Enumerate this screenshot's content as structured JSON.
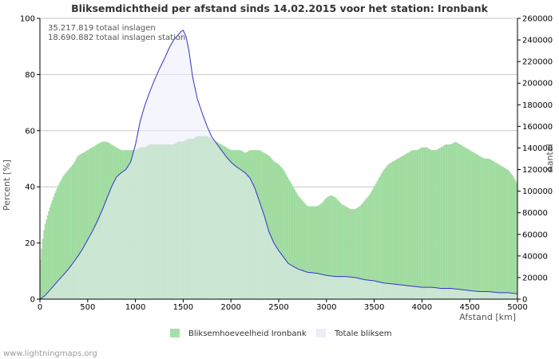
{
  "chart_data": {
    "type": "bar",
    "title": "Bliksemdichtheid per afstand sinds 14.02.2015 voor het station: Ironbank",
    "info_lines": [
      "35.217.819 totaal inslagen",
      "18.690.882 totaal inslagen station"
    ],
    "xlabel": "Afstand   [km]",
    "ylabel_left": "Percent   [%]",
    "ylabel_right": "Aantal",
    "xlim": [
      0,
      5000
    ],
    "ylim_left": [
      0,
      100
    ],
    "ylim_right": [
      0,
      260000
    ],
    "x_ticks": [
      0,
      500,
      1000,
      1500,
      2000,
      2500,
      3000,
      3500,
      4000,
      4500,
      5000
    ],
    "y_ticks_left": [
      0,
      20,
      40,
      60,
      80,
      100
    ],
    "y_ticks_right": [
      "0",
      "20000",
      "40000",
      "60000",
      "80000",
      "100000",
      "120000",
      "140000",
      "160000",
      "180000",
      "200000",
      "220000",
      "240000",
      "260000"
    ],
    "legend": [
      "Bliksemhoeveelheid Ironbank",
      "Totale bliksem"
    ],
    "colors": {
      "station": "#a7dfa7",
      "station_edge": "#8fd48f",
      "total_fill": "#ececfb",
      "total_line": "#3333cc",
      "grid": "#c8c8c8"
    },
    "series": [
      {
        "name": "Bliksemhoeveelheid Ironbank",
        "axis": "left",
        "x": [
          0,
          25,
          50,
          100,
          150,
          200,
          250,
          300,
          350,
          400,
          450,
          500,
          550,
          600,
          650,
          700,
          750,
          800,
          850,
          900,
          950,
          1000,
          1050,
          1100,
          1150,
          1200,
          1250,
          1300,
          1350,
          1400,
          1450,
          1500,
          1550,
          1600,
          1650,
          1700,
          1750,
          1800,
          1850,
          1900,
          1950,
          2000,
          2050,
          2100,
          2150,
          2200,
          2250,
          2300,
          2350,
          2400,
          2450,
          2500,
          2550,
          2600,
          2650,
          2700,
          2750,
          2800,
          2850,
          2900,
          2950,
          3000,
          3050,
          3100,
          3150,
          3200,
          3250,
          3300,
          3350,
          3400,
          3450,
          3500,
          3550,
          3600,
          3650,
          3700,
          3750,
          3800,
          3850,
          3900,
          3950,
          4000,
          4050,
          4100,
          4150,
          4200,
          4250,
          4300,
          4350,
          4400,
          4450,
          4500,
          4550,
          4600,
          4650,
          4700,
          4750,
          4800,
          4850,
          4900,
          4950,
          5000
        ],
        "values": [
          12,
          20,
          26,
          32,
          37,
          41,
          44,
          46,
          48,
          51,
          52,
          53,
          54,
          55,
          56,
          56,
          55,
          54,
          53,
          53,
          53,
          53,
          54,
          54,
          55,
          55,
          55,
          55,
          55,
          55,
          56,
          56,
          57,
          57,
          58,
          58,
          58,
          57,
          56,
          55,
          54,
          53,
          53,
          53,
          52,
          53,
          53,
          53,
          52,
          51,
          49,
          48,
          46,
          43,
          40,
          37,
          35,
          33,
          33,
          33,
          34,
          36,
          37,
          36,
          34,
          33,
          32,
          32,
          33,
          35,
          37,
          40,
          43,
          46,
          48,
          49,
          50,
          51,
          52,
          53,
          53,
          54,
          54,
          53,
          53,
          54,
          55,
          55,
          56,
          55,
          54,
          53,
          52,
          51,
          50,
          50,
          49,
          48,
          47,
          46,
          44,
          41
        ]
      },
      {
        "name": "Totale bliksem",
        "axis": "right",
        "x": [
          0,
          50,
          100,
          150,
          200,
          250,
          300,
          350,
          400,
          450,
          500,
          550,
          600,
          650,
          700,
          750,
          800,
          850,
          900,
          950,
          1000,
          1050,
          1100,
          1150,
          1200,
          1250,
          1300,
          1350,
          1400,
          1450,
          1480,
          1500,
          1530,
          1560,
          1600,
          1650,
          1700,
          1750,
          1800,
          1850,
          1900,
          1950,
          2000,
          2050,
          2100,
          2150,
          2200,
          2250,
          2300,
          2350,
          2400,
          2450,
          2500,
          2550,
          2600,
          2700,
          2800,
          2900,
          3000,
          3100,
          3200,
          3300,
          3400,
          3500,
          3600,
          3700,
          3800,
          3900,
          4000,
          4100,
          4200,
          4300,
          4400,
          4500,
          4600,
          4700,
          4800,
          4900,
          5000
        ],
        "values": [
          0,
          3000,
          8000,
          13000,
          18000,
          23000,
          28000,
          34000,
          40000,
          47000,
          55000,
          63000,
          72000,
          82000,
          93000,
          104000,
          113000,
          117000,
          120000,
          127000,
          143000,
          165000,
          180000,
          192000,
          203000,
          213000,
          222000,
          232000,
          240000,
          245000,
          248000,
          249000,
          243000,
          230000,
          205000,
          185000,
          172000,
          160000,
          150000,
          144000,
          138000,
          132000,
          127000,
          123000,
          120000,
          117000,
          112000,
          103000,
          90000,
          77000,
          62000,
          52000,
          45000,
          39000,
          33000,
          28000,
          25000,
          24000,
          22000,
          21000,
          21000,
          20000,
          18000,
          17000,
          15000,
          14000,
          13000,
          12000,
          11000,
          11000,
          10000,
          10000,
          9000,
          8000,
          7000,
          7000,
          6000,
          6000,
          5000
        ]
      }
    ]
  },
  "credit": "www.lightningmaps.org"
}
